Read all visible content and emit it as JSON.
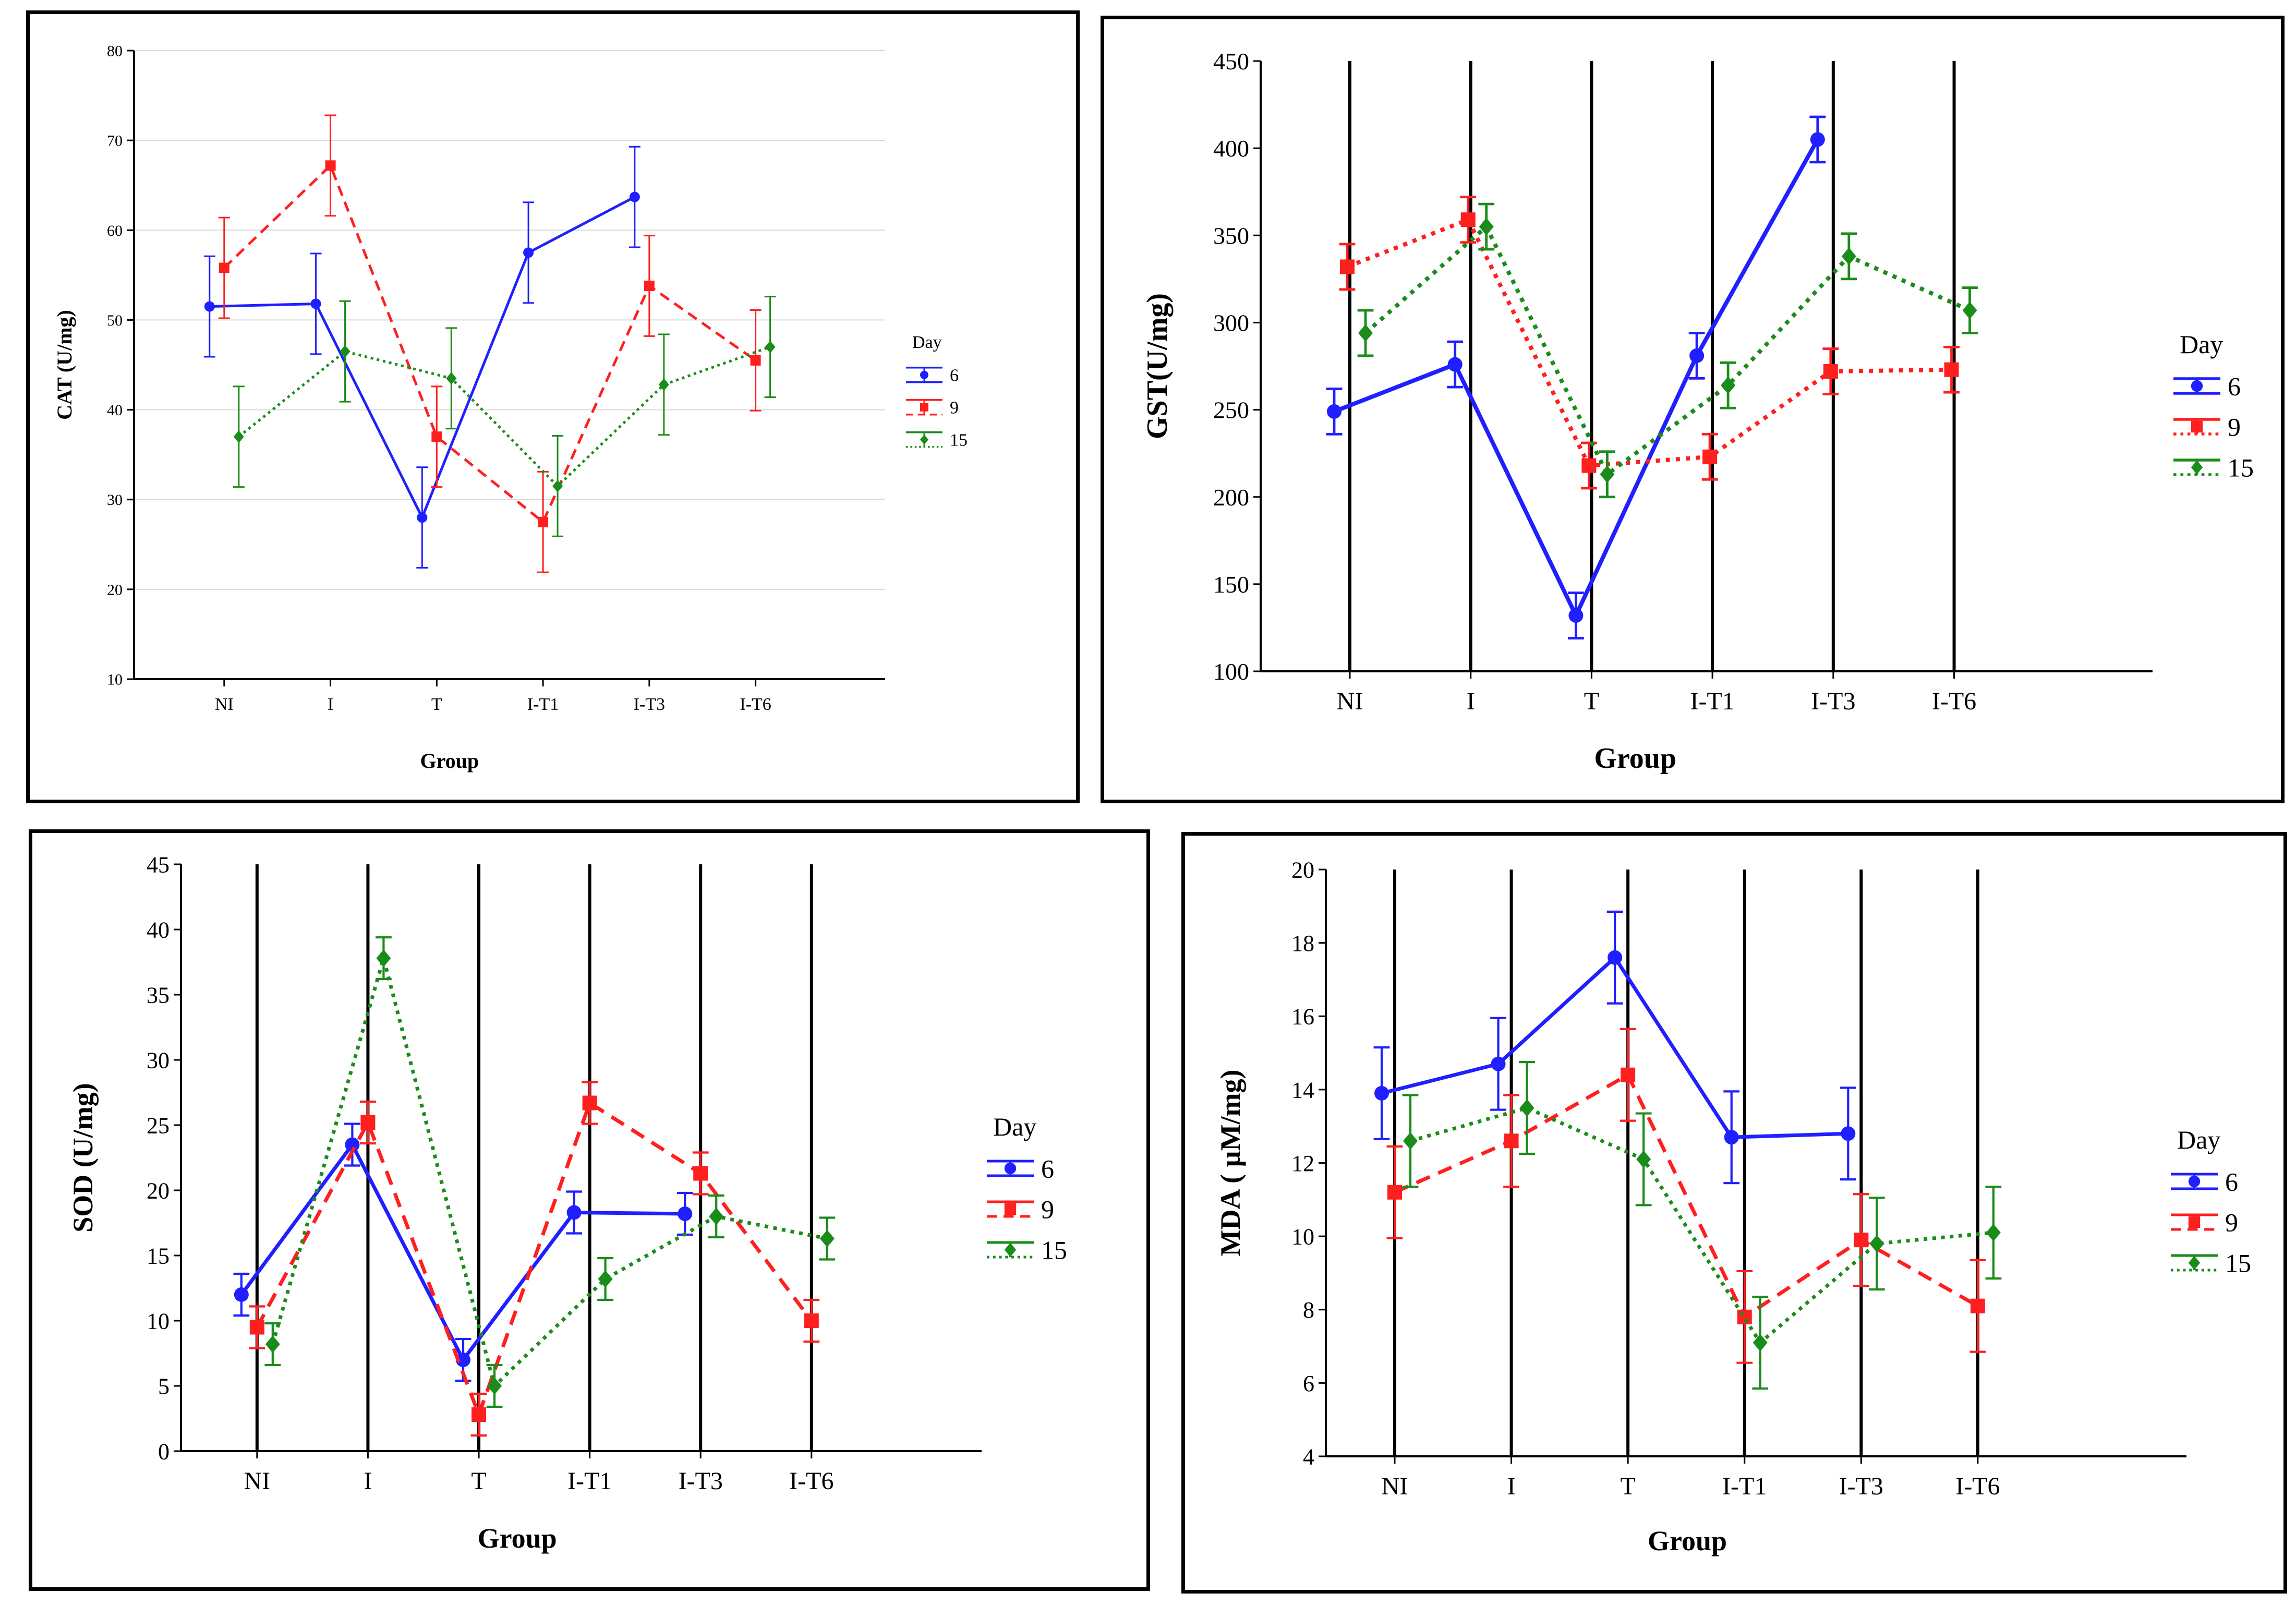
{
  "colors": {
    "6": "#1f1fff",
    "9": "#ff1f1f",
    "15": "#1a8c1a",
    "grid": "#d9d9d9",
    "axis": "#000000"
  },
  "chart_data": [
    {
      "type": "line",
      "categories": [
        "NI",
        "I",
        "T",
        "I-T1",
        "I-T3",
        "I-T6"
      ],
      "xlabel": "Group",
      "ylabel": "CAT (U/mg)",
      "ylim": [
        10,
        80
      ],
      "yticks": [
        10,
        20,
        30,
        40,
        50,
        60,
        70,
        80
      ],
      "grid": "horizontal",
      "legend_title": "Day",
      "legend_position": "right",
      "series": [
        {
          "name": "6",
          "color": "#1f1fff",
          "dash": "solid",
          "marker": "circle",
          "values": [
            51.5,
            51.8,
            28.0,
            57.5,
            63.7,
            null
          ],
          "errors": [
            5.6,
            5.6,
            5.6,
            5.6,
            5.6,
            null
          ]
        },
        {
          "name": "9",
          "color": "#ff1f1f",
          "dash": "dashed",
          "marker": "square",
          "values": [
            55.8,
            67.2,
            37.0,
            27.5,
            53.8,
            45.5
          ],
          "errors": [
            5.6,
            5.6,
            5.6,
            5.6,
            5.6,
            5.6
          ]
        },
        {
          "name": "15",
          "color": "#1a8c1a",
          "dash": "dotted",
          "marker": "diamond",
          "values": [
            37.0,
            46.5,
            43.5,
            31.5,
            42.8,
            47.0
          ],
          "errors": [
            5.6,
            5.6,
            5.6,
            5.6,
            5.6,
            5.6
          ]
        }
      ]
    },
    {
      "type": "line",
      "categories": [
        "NI",
        "I",
        "T",
        "I-T1",
        "I-T3",
        "I-T6"
      ],
      "xlabel": "Group",
      "ylabel": "GST(U/mg)",
      "ylim": [
        100,
        450
      ],
      "yticks": [
        100,
        150,
        200,
        250,
        300,
        350,
        400,
        450
      ],
      "grid": "vertical",
      "legend_title": "Day",
      "legend_position": "right",
      "series": [
        {
          "name": "6",
          "color": "#1f1fff",
          "dash": "solid",
          "marker": "circle",
          "values": [
            249,
            276,
            132,
            281,
            405,
            null
          ],
          "errors": [
            13,
            13,
            13,
            13,
            13,
            null
          ]
        },
        {
          "name": "9",
          "color": "#ff1f1f",
          "dash": "dotted",
          "marker": "square",
          "values": [
            332,
            359,
            218,
            223,
            272,
            273
          ],
          "errors": [
            13,
            13,
            13,
            13,
            13,
            13
          ]
        },
        {
          "name": "15",
          "color": "#1a8c1a",
          "dash": "dotted",
          "marker": "diamond",
          "values": [
            294,
            355,
            213,
            264,
            338,
            307
          ],
          "errors": [
            13,
            13,
            13,
            13,
            13,
            13
          ]
        }
      ]
    },
    {
      "type": "line",
      "categories": [
        "NI",
        "I",
        "T",
        "I-T1",
        "I-T3",
        "I-T6"
      ],
      "xlabel": "Group",
      "ylabel": "SOD (U/mg)",
      "ylim": [
        0,
        45
      ],
      "yticks": [
        0,
        5,
        10,
        15,
        20,
        25,
        30,
        35,
        40,
        45
      ],
      "grid": "vertical",
      "legend_title": "Day",
      "legend_position": "right",
      "series": [
        {
          "name": "6",
          "color": "#1f1fff",
          "dash": "solid",
          "marker": "circle",
          "values": [
            12.0,
            23.5,
            7.0,
            18.3,
            18.2,
            null
          ],
          "errors": [
            1.6,
            1.6,
            1.6,
            1.6,
            1.6,
            null
          ]
        },
        {
          "name": "9",
          "color": "#ff1f1f",
          "dash": "dashed",
          "marker": "square",
          "values": [
            9.5,
            25.2,
            2.8,
            26.7,
            21.3,
            10.0
          ],
          "errors": [
            1.6,
            1.6,
            1.6,
            1.6,
            1.6,
            1.6
          ]
        },
        {
          "name": "15",
          "color": "#1a8c1a",
          "dash": "dotted",
          "marker": "diamond",
          "values": [
            8.2,
            37.8,
            5.0,
            13.2,
            18.0,
            16.3
          ],
          "errors": [
            1.6,
            1.6,
            1.6,
            1.6,
            1.6,
            1.6
          ]
        }
      ]
    },
    {
      "type": "line",
      "categories": [
        "NI",
        "I",
        "T",
        "I-T1",
        "I-T3",
        "I-T6"
      ],
      "xlabel": "Group",
      "ylabel": "MDA ( µM/mg)",
      "ylim": [
        4,
        20
      ],
      "yticks": [
        4,
        6,
        8,
        10,
        12,
        14,
        16,
        18,
        20
      ],
      "grid": "vertical",
      "legend_title": "Day",
      "legend_position": "right",
      "series": [
        {
          "name": "6",
          "color": "#1f1fff",
          "dash": "solid",
          "marker": "circle",
          "values": [
            13.9,
            14.7,
            17.6,
            12.7,
            12.8,
            null
          ],
          "errors": [
            1.25,
            1.25,
            1.25,
            1.25,
            1.25,
            null
          ]
        },
        {
          "name": "9",
          "color": "#ff1f1f",
          "dash": "dashed",
          "marker": "square",
          "values": [
            11.2,
            12.6,
            14.4,
            7.8,
            9.9,
            8.1
          ],
          "errors": [
            1.25,
            1.25,
            1.25,
            1.25,
            1.25,
            1.25
          ]
        },
        {
          "name": "15",
          "color": "#1a8c1a",
          "dash": "dotted",
          "marker": "diamond",
          "values": [
            12.6,
            13.5,
            12.1,
            7.1,
            9.8,
            10.1
          ],
          "errors": [
            1.25,
            1.25,
            1.25,
            1.25,
            1.25,
            1.25
          ]
        }
      ]
    }
  ]
}
